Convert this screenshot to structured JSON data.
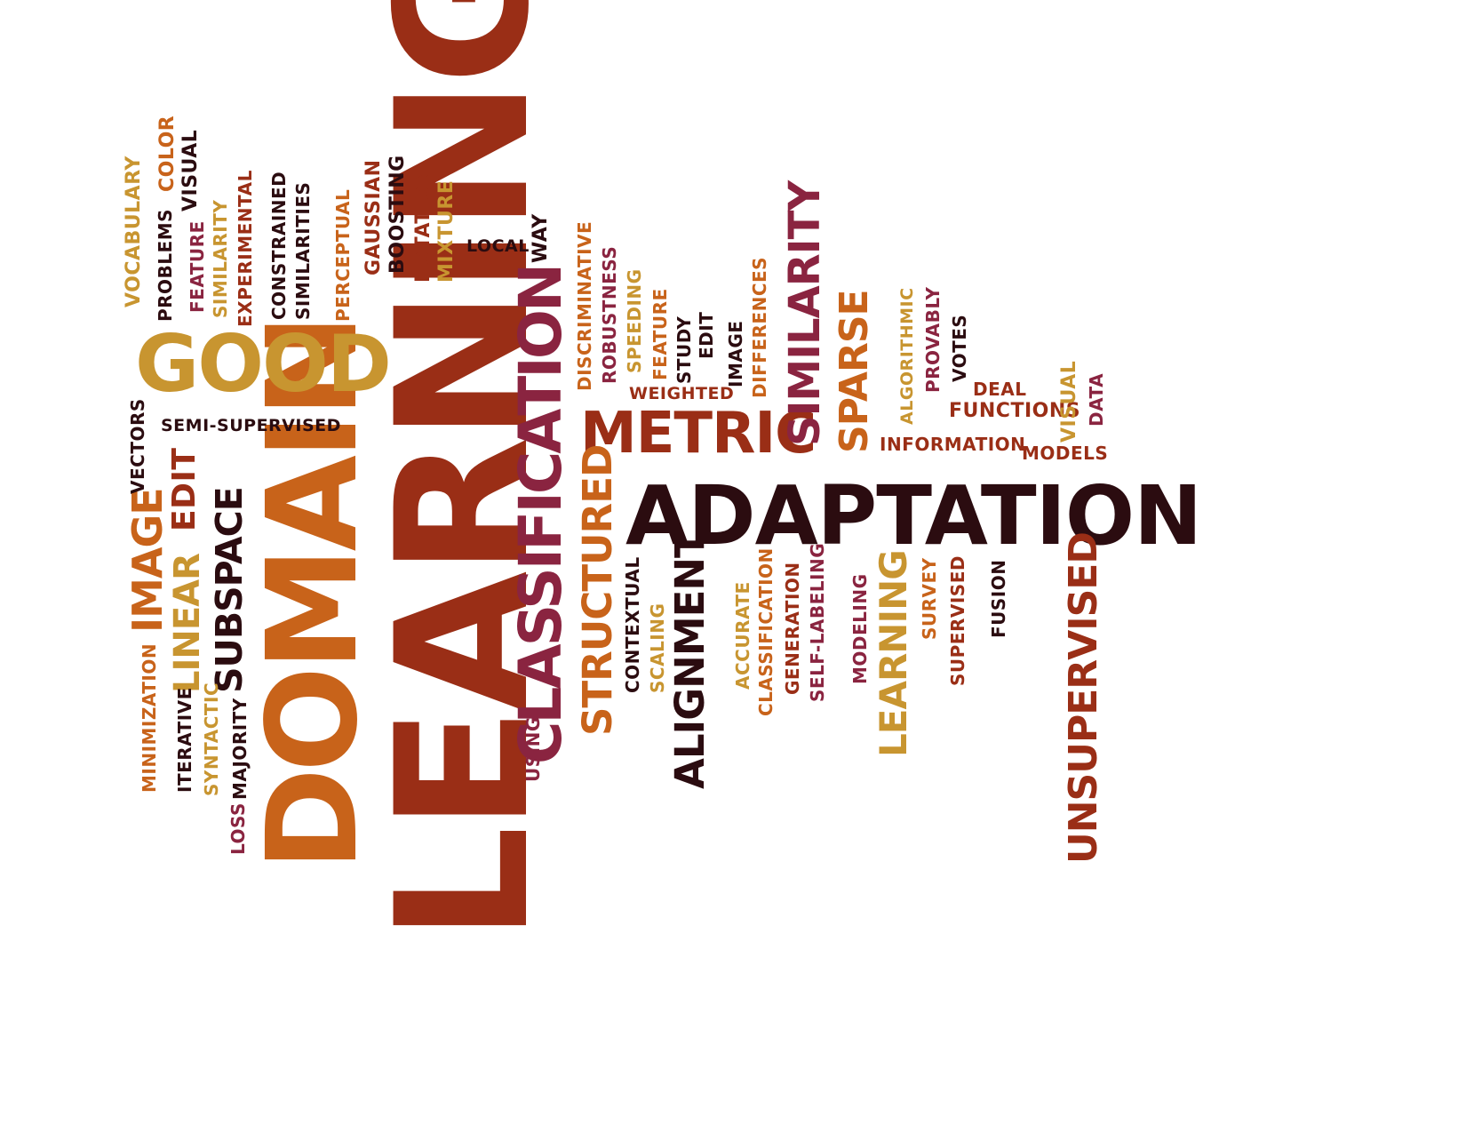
{
  "palette": {
    "dark": "#2b0c10",
    "red": "#8c2010",
    "brick": "#9a2e16",
    "orange": "#c8631a",
    "gold": "#c89530",
    "maroon": "#8a2440",
    "brown": "#6e1e14"
  },
  "words": [
    {
      "text": "LEARNING",
      "color": "brick"
    },
    {
      "text": "ADAPTATION",
      "color": "dark"
    },
    {
      "text": "DOMAIN",
      "color": "orange"
    },
    {
      "text": "CLASSIFICATION",
      "color": "maroon"
    },
    {
      "text": "GOOD",
      "color": "gold"
    },
    {
      "text": "METRIC",
      "color": "brick"
    },
    {
      "text": "SUBSPACE",
      "color": "dark"
    },
    {
      "text": "LINEAR",
      "color": "gold"
    },
    {
      "text": "IMAGE",
      "color": "orange"
    },
    {
      "text": "EDIT",
      "color": "brick"
    },
    {
      "text": "STRUCTURED",
      "color": "orange"
    },
    {
      "text": "ALIGNMENT",
      "color": "dark"
    },
    {
      "text": "SIMILARITY",
      "color": "maroon"
    },
    {
      "text": "SPARSE",
      "color": "orange"
    },
    {
      "text": "UNSUPERVISED",
      "color": "brick"
    },
    {
      "text": "LEARNING",
      "color": "gold"
    },
    {
      "text": "SEMI-SUPERVISED",
      "color": "dark"
    },
    {
      "text": "VOCABULARY",
      "color": "gold"
    },
    {
      "text": "COLOR",
      "color": "orange"
    },
    {
      "text": "VISUAL",
      "color": "dark"
    },
    {
      "text": "PROBLEMS",
      "color": "dark"
    },
    {
      "text": "FEATURE",
      "color": "maroon"
    },
    {
      "text": "SIMILARITY",
      "color": "gold"
    },
    {
      "text": "EXPERIMENTAL",
      "color": "brick"
    },
    {
      "text": "CONSTRAINED",
      "color": "dark"
    },
    {
      "text": "SIMILARITIES",
      "color": "dark"
    },
    {
      "text": "PERCEPTUAL",
      "color": "orange"
    },
    {
      "text": "GAUSSIAN",
      "color": "brick"
    },
    {
      "text": "BOOSTING",
      "color": "dark"
    },
    {
      "text": "ROTATION",
      "color": "brick"
    },
    {
      "text": "MIXTURE",
      "color": "gold"
    },
    {
      "text": "LOCAL",
      "color": "dark"
    },
    {
      "text": "WAY",
      "color": "dark"
    },
    {
      "text": "DISCRIMINATIVE",
      "color": "orange"
    },
    {
      "text": "ROBUSTNESS",
      "color": "maroon"
    },
    {
      "text": "SPEEDING",
      "color": "gold"
    },
    {
      "text": "FEATURE",
      "color": "orange"
    },
    {
      "text": "WEIGHTED",
      "color": "brick"
    },
    {
      "text": "STUDY",
      "color": "dark"
    },
    {
      "text": "EDIT",
      "color": "dark"
    },
    {
      "text": "IMAGE",
      "color": "dark"
    },
    {
      "text": "DIFFERENCES",
      "color": "orange"
    },
    {
      "text": "ALGORITHMIC",
      "color": "gold"
    },
    {
      "text": "PROVABLY",
      "color": "maroon"
    },
    {
      "text": "VOTES",
      "color": "dark"
    },
    {
      "text": "DEAL",
      "color": "brick"
    },
    {
      "text": "FUNCTIONS",
      "color": "brick"
    },
    {
      "text": "VISUAL",
      "color": "gold"
    },
    {
      "text": "DATA",
      "color": "maroon"
    },
    {
      "text": "INFORMATION",
      "color": "brick"
    },
    {
      "text": "MODELS",
      "color": "brick"
    },
    {
      "text": "VECTORS",
      "color": "dark"
    },
    {
      "text": "MINIMIZATION",
      "color": "orange"
    },
    {
      "text": "ITERATIVE",
      "color": "dark"
    },
    {
      "text": "SYNTACTIC",
      "color": "gold"
    },
    {
      "text": "LOSS",
      "color": "maroon"
    },
    {
      "text": "MAJORITY",
      "color": "dark"
    },
    {
      "text": "USING",
      "color": "maroon"
    },
    {
      "text": "CONTEXTUAL",
      "color": "dark"
    },
    {
      "text": "SCALING",
      "color": "gold"
    },
    {
      "text": "ACCURATE",
      "color": "gold"
    },
    {
      "text": "CLASSIFICATION",
      "color": "orange"
    },
    {
      "text": "GENERATION",
      "color": "brick"
    },
    {
      "text": "SELF-LABELING",
      "color": "maroon"
    },
    {
      "text": "MODELING",
      "color": "maroon"
    },
    {
      "text": "SURVEY",
      "color": "orange"
    },
    {
      "text": "SUPERVISED",
      "color": "brick"
    },
    {
      "text": "FUSION",
      "color": "dark"
    }
  ]
}
